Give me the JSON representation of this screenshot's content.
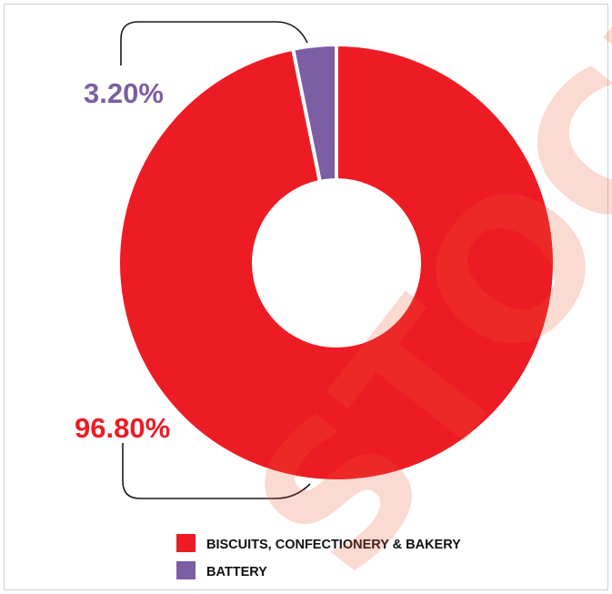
{
  "colors": {
    "biscuits": "#ed1c24",
    "battery": "#7b5ea3",
    "watermark": "#f15a37",
    "bracket": "#1a1a1a"
  },
  "chart_data": {
    "type": "pie",
    "variant": "donut",
    "title": "",
    "series": [
      {
        "name": "BISCUITS, CONFECTIONERY & BAKERY",
        "value": 96.8,
        "label": "96.80%",
        "color": "#ed1c24"
      },
      {
        "name": "BATTERY",
        "value": 3.2,
        "label": "3.20%",
        "color": "#7b5ea3"
      }
    ],
    "legend_placement": "bottom-center"
  },
  "watermark": {
    "text": "STOCK"
  }
}
